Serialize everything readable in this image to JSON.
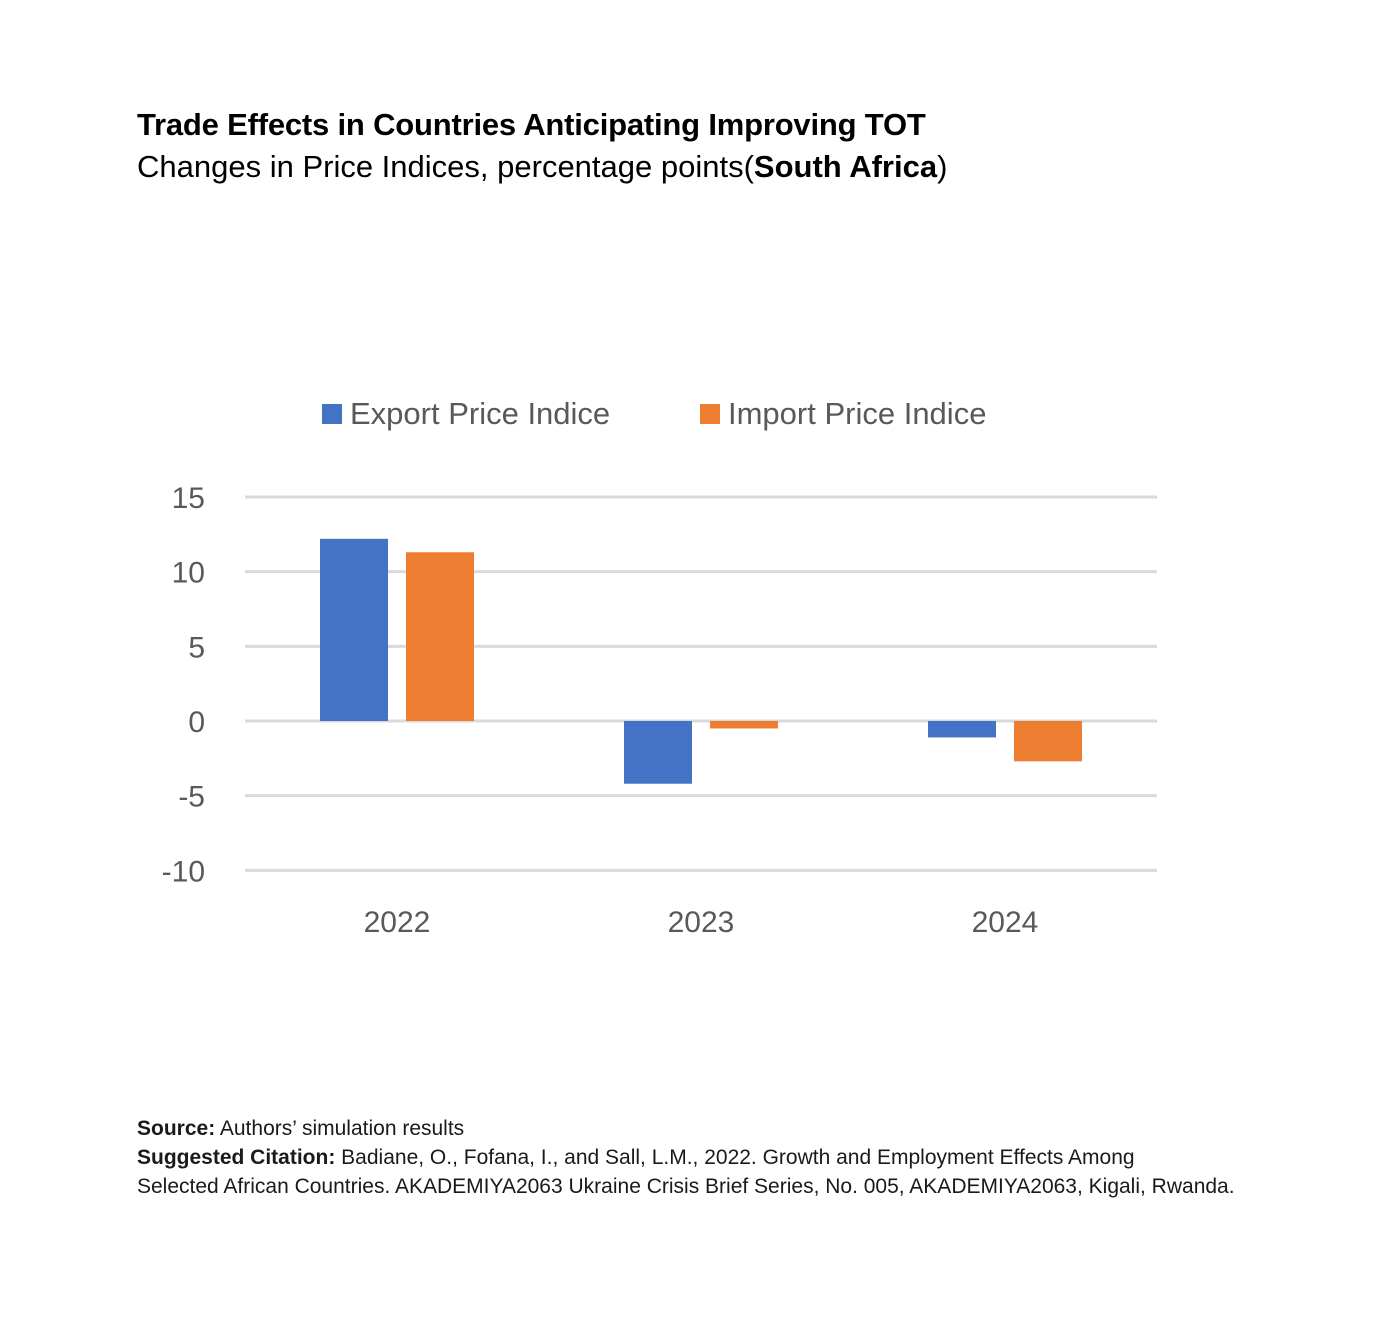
{
  "title": "Trade Effects in Countries Anticipating Improving TOT",
  "subtitle_prefix": "Changes in Price Indices, percentage points(",
  "subtitle_bold": "South Africa",
  "subtitle_suffix": ")",
  "chart_data": {
    "type": "bar",
    "categories": [
      "2022",
      "2023",
      "2024"
    ],
    "series": [
      {
        "name": "Export Price Indice",
        "values": [
          12.2,
          -4.2,
          -1.1
        ],
        "color": "#4472C4"
      },
      {
        "name": "Import Price Indice",
        "values": [
          11.3,
          -0.5,
          -2.7
        ],
        "color": "#ED7D31"
      }
    ],
    "yticks": [
      "15",
      "10",
      "5",
      "0",
      "-5",
      "-10"
    ],
    "ylim": [
      -10,
      15
    ],
    "grid": true,
    "legend_position": "top"
  },
  "footer": {
    "source_label": "Source:",
    "source_text": " Authors’ simulation results",
    "citation_label": "Suggested Citation:",
    "citation_text_1": " Badiane, O., Fofana, I., and Sall, L.M., 2022. Growth and Employment Effects Among",
    "citation_text_2": "Selected African Countries. AKADEMIYA2063 Ukraine Crisis Brief Series, No. 005, AKADEMIYA2063, Kigali, Rwanda."
  }
}
